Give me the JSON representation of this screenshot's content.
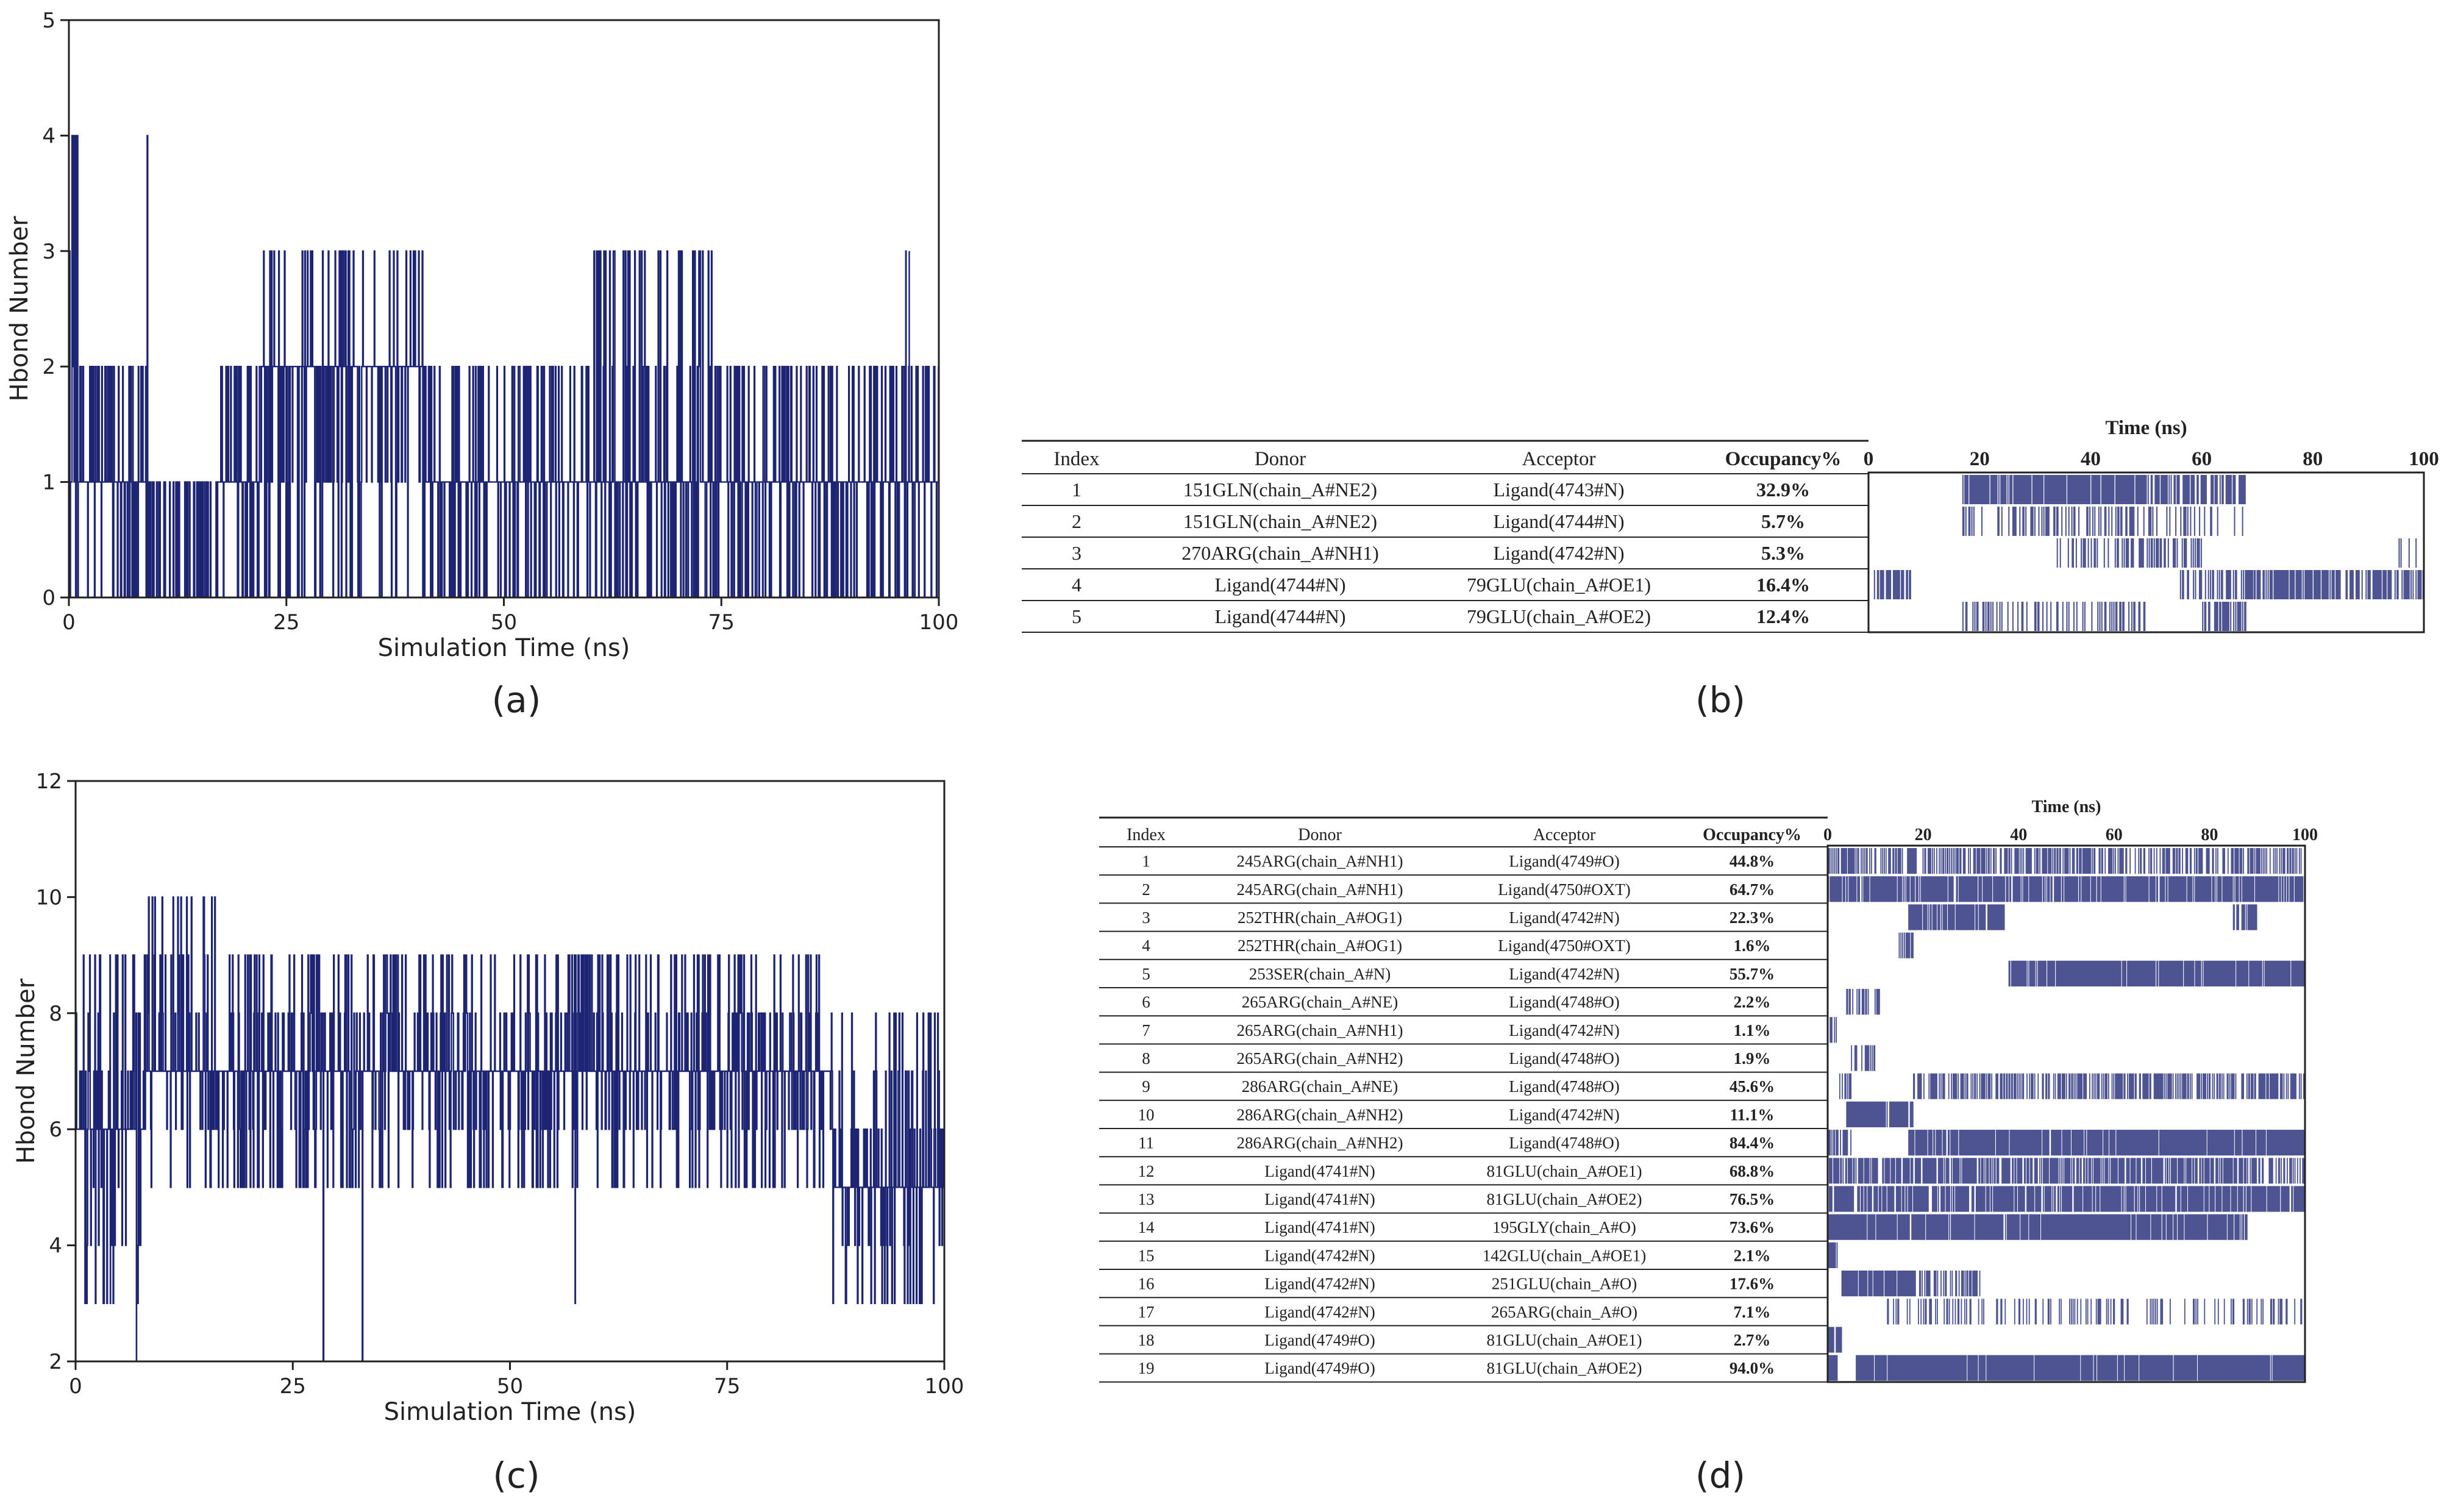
{
  "figure": {
    "panel_labels": [
      "(a)",
      "(b)",
      "(c)",
      "(d)"
    ]
  },
  "colors": {
    "series": "#1c2473",
    "axis": "#222222",
    "text": "#222222"
  },
  "chart_data": [
    {
      "panel": "(a)",
      "type": "line",
      "title": "",
      "xlabel": "Simulation Time (ns)",
      "ylabel": "Hbond Number",
      "xlim": [
        0,
        100
      ],
      "ylim": [
        0,
        5
      ],
      "xticks": [
        0,
        25,
        50,
        75,
        100
      ],
      "yticks": [
        0,
        1,
        2,
        3,
        4,
        5
      ],
      "segments": [
        {
          "start": 0,
          "end": 1,
          "low": 0,
          "high": 4,
          "base": 1
        },
        {
          "start": 1,
          "end": 9,
          "low": 0,
          "high": 2,
          "base": 1
        },
        {
          "start": 9,
          "end": 17,
          "low": 0,
          "high": 1,
          "base": 0
        },
        {
          "start": 17,
          "end": 22,
          "low": 0,
          "high": 2,
          "base": 1
        },
        {
          "start": 22,
          "end": 41,
          "low": 0,
          "high": 3,
          "base": 2
        },
        {
          "start": 41,
          "end": 60,
          "low": 0,
          "high": 2,
          "base": 1
        },
        {
          "start": 60,
          "end": 74,
          "low": 0,
          "high": 3,
          "base": 1
        },
        {
          "start": 74,
          "end": 100,
          "low": 0,
          "high": 2,
          "base": 1
        }
      ],
      "spikes": [
        {
          "x": 0.5,
          "y": 4
        },
        {
          "x": 1.0,
          "y": 4
        },
        {
          "x": 9.0,
          "y": 4
        },
        {
          "x": 96.2,
          "y": 3
        },
        {
          "x": 96.6,
          "y": 3
        }
      ]
    },
    {
      "panel": "(b)",
      "type": "table",
      "columns": [
        "Index",
        "Donor",
        "Acceptor",
        "Occupancy%"
      ],
      "time_axis_label": "Time (ns)",
      "time_ticks": [
        0,
        20,
        40,
        60,
        80,
        100
      ],
      "rows": [
        {
          "index": "1",
          "donor": "151GLN(chain_A#NE2)",
          "acceptor": "Ligand(4743#N)",
          "occupancy": "32.9%",
          "bands": [
            [
              17,
              50,
              0.9
            ],
            [
              50,
              68,
              0.6
            ]
          ]
        },
        {
          "index": "2",
          "donor": "151GLN(chain_A#NE2)",
          "acceptor": "Ligand(4744#N)",
          "occupancy": "5.7%",
          "bands": [
            [
              17,
              58,
              0.35
            ],
            [
              58,
              68,
              0.2
            ]
          ]
        },
        {
          "index": "3",
          "donor": "270ARG(chain_A#NH1)",
          "acceptor": "Ligand(4742#N)",
          "occupancy": "5.3%",
          "bands": [
            [
              34,
              60,
              0.35
            ],
            [
              95,
              99,
              0.25
            ]
          ]
        },
        {
          "index": "4",
          "donor": "Ligand(4744#N)",
          "acceptor": "79GLU(chain_A#OE1)",
          "occupancy": "16.4%",
          "bands": [
            [
              0,
              8,
              0.6
            ],
            [
              56,
              70,
              0.45
            ],
            [
              68,
              100,
              0.75
            ]
          ]
        },
        {
          "index": "5",
          "donor": "Ligand(4744#N)",
          "acceptor": "79GLU(chain_A#OE2)",
          "occupancy": "12.4%",
          "bands": [
            [
              17,
              50,
              0.35
            ],
            [
              60,
              68,
              0.6
            ]
          ]
        }
      ]
    },
    {
      "panel": "(c)",
      "type": "line",
      "title": "",
      "xlabel": "Simulation Time (ns)",
      "ylabel": "Hbond Number",
      "xlim": [
        0,
        100
      ],
      "ylim": [
        2,
        12
      ],
      "xticks": [
        0,
        25,
        50,
        75,
        100
      ],
      "yticks": [
        2,
        4,
        6,
        8,
        10,
        12
      ],
      "segments": [
        {
          "start": 0,
          "end": 8,
          "low": 3,
          "high": 9,
          "base": 6
        },
        {
          "start": 8,
          "end": 17,
          "low": 5,
          "high": 10,
          "base": 7
        },
        {
          "start": 17,
          "end": 87,
          "low": 5,
          "high": 9,
          "base": 7
        },
        {
          "start": 87,
          "end": 100,
          "low": 3,
          "high": 8,
          "base": 5
        }
      ],
      "spikes": [
        {
          "x": 7.0,
          "y": 2
        },
        {
          "x": 28.5,
          "y": 2
        },
        {
          "x": 33.0,
          "y": 2
        },
        {
          "x": 57.5,
          "y": 3
        },
        {
          "x": 4.0,
          "y": 3
        }
      ]
    },
    {
      "panel": "(d)",
      "type": "table",
      "columns": [
        "Index",
        "Donor",
        "Acceptor",
        "Occupancy%"
      ],
      "time_axis_label": "Time (ns)",
      "time_ticks": [
        0,
        20,
        40,
        60,
        80,
        100
      ],
      "rows": [
        {
          "index": "1",
          "donor": "245ARG(chain_A#NH1)",
          "acceptor": "Ligand(4749#O)",
          "occupancy": "44.8%",
          "bands": [
            [
              0,
              100,
              0.55
            ]
          ]
        },
        {
          "index": "2",
          "donor": "245ARG(chain_A#NH1)",
          "acceptor": "Ligand(4750#OXT)",
          "occupancy": "64.7%",
          "bands": [
            [
              0,
              100,
              0.85
            ]
          ]
        },
        {
          "index": "3",
          "donor": "252THR(chain_A#OG1)",
          "acceptor": "Ligand(4742#N)",
          "occupancy": "22.3%",
          "bands": [
            [
              17,
              37,
              0.9
            ],
            [
              85,
              90,
              0.8
            ]
          ]
        },
        {
          "index": "4",
          "donor": "252THR(chain_A#OG1)",
          "acceptor": "Ligand(4750#OXT)",
          "occupancy": "1.6%",
          "bands": [
            [
              15,
              18,
              0.7
            ]
          ]
        },
        {
          "index": "5",
          "donor": "253SER(chain_A#N)",
          "acceptor": "Ligand(4742#N)",
          "occupancy": "55.7%",
          "bands": [
            [
              38,
              100,
              0.95
            ]
          ]
        },
        {
          "index": "6",
          "donor": "265ARG(chain_A#NE)",
          "acceptor": "Ligand(4748#O)",
          "occupancy": "2.2%",
          "bands": [
            [
              4,
              11,
              0.5
            ]
          ]
        },
        {
          "index": "7",
          "donor": "265ARG(chain_A#NH1)",
          "acceptor": "Ligand(4742#N)",
          "occupancy": "1.1%",
          "bands": [
            [
              0,
              2,
              0.5
            ]
          ]
        },
        {
          "index": "8",
          "donor": "265ARG(chain_A#NH2)",
          "acceptor": "Ligand(4748#O)",
          "occupancy": "1.9%",
          "bands": [
            [
              5,
              10,
              0.55
            ]
          ]
        },
        {
          "index": "9",
          "donor": "286ARG(chain_A#NE)",
          "acceptor": "Ligand(4748#O)",
          "occupancy": "45.6%",
          "bands": [
            [
              18,
              100,
              0.6
            ],
            [
              2,
              5,
              0.5
            ]
          ]
        },
        {
          "index": "10",
          "donor": "286ARG(chain_A#NH2)",
          "acceptor": "Ligand(4742#N)",
          "occupancy": "11.1%",
          "bands": [
            [
              4,
              18,
              0.9
            ]
          ]
        },
        {
          "index": "11",
          "donor": "286ARG(chain_A#NH2)",
          "acceptor": "Ligand(4748#O)",
          "occupancy": "84.4%",
          "bands": [
            [
              17,
              100,
              0.95
            ],
            [
              0,
              5,
              0.6
            ]
          ]
        },
        {
          "index": "12",
          "donor": "Ligand(4741#N)",
          "acceptor": "81GLU(chain_A#OE1)",
          "occupancy": "68.8%",
          "bands": [
            [
              0,
              88,
              0.75
            ],
            [
              88,
              100,
              0.5
            ]
          ]
        },
        {
          "index": "13",
          "donor": "Ligand(4741#N)",
          "acceptor": "81GLU(chain_A#OE2)",
          "occupancy": "76.5%",
          "bands": [
            [
              0,
              100,
              0.85
            ]
          ]
        },
        {
          "index": "14",
          "donor": "Ligand(4741#N)",
          "acceptor": "195GLY(chain_A#O)",
          "occupancy": "73.6%",
          "bands": [
            [
              0,
              88,
              0.95
            ]
          ]
        },
        {
          "index": "15",
          "donor": "Ligand(4742#N)",
          "acceptor": "142GLU(chain_A#OE1)",
          "occupancy": "2.1%",
          "bands": [
            [
              0,
              2,
              0.6
            ]
          ]
        },
        {
          "index": "16",
          "donor": "Ligand(4742#N)",
          "acceptor": "251GLU(chain_A#O)",
          "occupancy": "17.6%",
          "bands": [
            [
              3,
              18,
              0.9
            ],
            [
              18,
              32,
              0.5
            ]
          ]
        },
        {
          "index": "17",
          "donor": "Ligand(4742#N)",
          "acceptor": "265ARG(chain_A#O)",
          "occupancy": "7.1%",
          "bands": [
            [
              12,
              100,
              0.25
            ]
          ]
        },
        {
          "index": "18",
          "donor": "Ligand(4749#O)",
          "acceptor": "81GLU(chain_A#OE1)",
          "occupancy": "2.7%",
          "bands": [
            [
              0,
              3,
              0.8
            ]
          ]
        },
        {
          "index": "19",
          "donor": "Ligand(4749#O)",
          "acceptor": "81GLU(chain_A#OE2)",
          "occupancy": "94.0%",
          "bands": [
            [
              0,
              2,
              0.9
            ],
            [
              6,
              100,
              0.97
            ]
          ]
        }
      ]
    }
  ]
}
